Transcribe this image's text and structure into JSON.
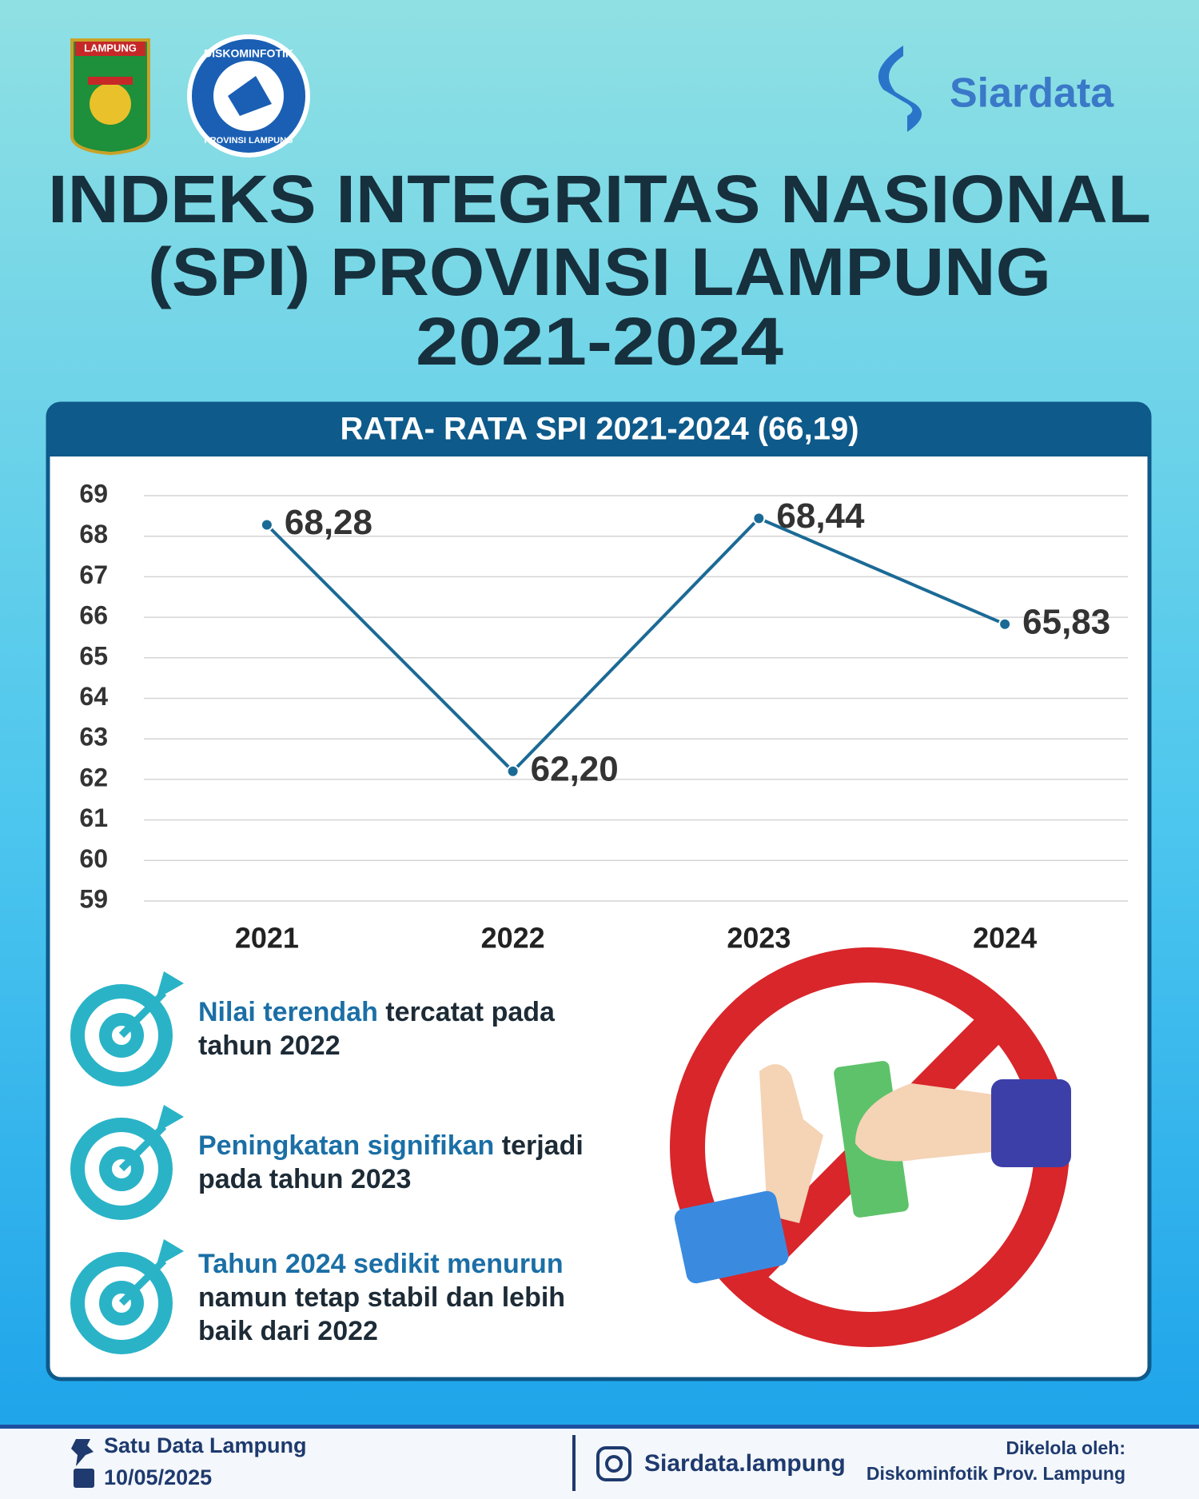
{
  "header": {
    "logo_left": "LAMPUNG",
    "logo_mid_top": "DISKOMINFOTIK",
    "logo_mid_bottom": "PROVINSI LAMPUNG",
    "brand": "Siardata",
    "title_lines": [
      "INDEKS INTEGRITAS NASIONAL",
      "(SPI) PROVINSI LAMPUNG",
      "2021-2024"
    ]
  },
  "chart_data": {
    "type": "line",
    "title": "RATA- RATA SPI 2021-2024 (66,19)",
    "categories": [
      "2021",
      "2022",
      "2023",
      "2024"
    ],
    "values": [
      68.28,
      62.2,
      68.44,
      65.83
    ],
    "value_labels": [
      "68,28",
      "62,20",
      "68,44",
      "65,83"
    ],
    "color": "#1b6a96",
    "ylim": [
      59,
      69
    ],
    "yticks": [
      59,
      60,
      61,
      62,
      63,
      64,
      65,
      66,
      67,
      68,
      69
    ],
    "grid": true
  },
  "notes": [
    {
      "highlight": "Nilai terendah",
      "text": "tercatat pada tahun 2022"
    },
    {
      "highlight": "Peningkatan signifikan",
      "text": "terjadi pada tahun 2023"
    },
    {
      "highlight": "Tahun 2024 sedikit menurun",
      "text": "namun tetap stabil dan lebih baik dari 2022"
    }
  ],
  "footer": {
    "source": "Satu Data Lampung",
    "date": "10/05/2025",
    "instagram": "Siardata.lampung",
    "managed_label": "Dikelola oleh:",
    "managed_by": "Diskominfotik Prov. Lampung"
  }
}
